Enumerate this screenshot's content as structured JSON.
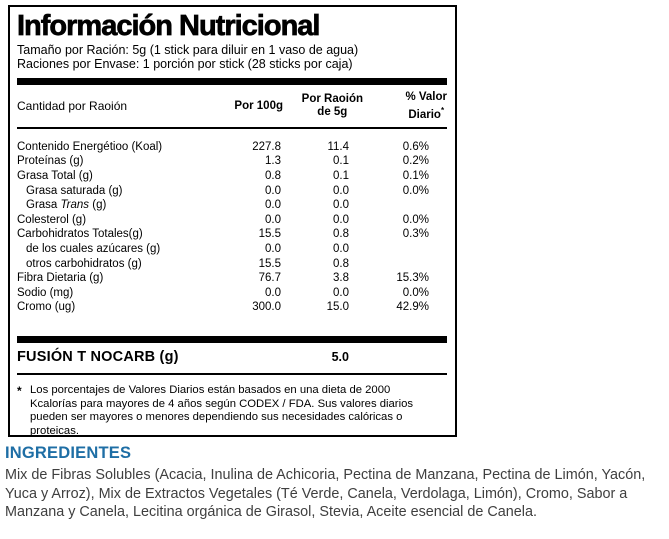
{
  "colors": {
    "accent_blue": "#1e6ea5",
    "ingredients_ink": "#3f3f3f",
    "ink": "#000000"
  },
  "label": {
    "title": "Información Nutricional",
    "serving_size_line": "Tamaño por Ración: 5g (1 stick para diluir en 1 vaso de agua)",
    "servings_per_container_line": "Raciones por Envase: 1 porción por stick (28 sticks por caja)",
    "columns": {
      "amount_header": "Cantidad por Raoión",
      "per_100g": "Por 100g",
      "per_serving_line1": "Por Raoión",
      "per_serving_line2": "de 5g",
      "daily_value_line1": "% Valor",
      "daily_value_line2": "Diario",
      "daily_value_asterisk": "*"
    },
    "rows": [
      {
        "label": "Contenido Energétioo (Koal)",
        "indent": false,
        "per100g": "227.8",
        "per_serving": "11.4",
        "dv": "0.6%"
      },
      {
        "label": "Proteínas (g)",
        "indent": false,
        "per100g": "1.3",
        "per_serving": "0.1",
        "dv": "0.2%"
      },
      {
        "label": "Grasa Total (g)",
        "indent": false,
        "per100g": "0.8",
        "per_serving": "0.1",
        "dv": "0.1%"
      },
      {
        "label": "Grasa saturada (g)",
        "indent": true,
        "per100g": "0.0",
        "per_serving": "0.0",
        "dv": "0.0%"
      },
      {
        "label_pre": "Grasa ",
        "label_italic": "Trans",
        "label_post": " (g)",
        "indent": true,
        "per100g": "0.0",
        "per_serving": "0.0",
        "dv": ""
      },
      {
        "label": "Colesterol (g)",
        "indent": false,
        "per100g": "0.0",
        "per_serving": "0.0",
        "dv": "0.0%"
      },
      {
        "label": "Carbohidratos Totales(g)",
        "indent": false,
        "per100g": "15.5",
        "per_serving": "0.8",
        "dv": "0.3%"
      },
      {
        "label": "de los cuales azúcares (g)",
        "indent": true,
        "per100g": "0.0",
        "per_serving": "0.0",
        "dv": ""
      },
      {
        "label": "otros carbohidratos (g)",
        "indent": true,
        "per100g": "15.5",
        "per_serving": "0.8",
        "dv": ""
      },
      {
        "label": "Fibra Dietaria (g)",
        "indent": false,
        "per100g": "76.7",
        "per_serving": "3.8",
        "dv": "15.3%"
      },
      {
        "label": "Sodio (mg)",
        "indent": false,
        "per100g": "0.0",
        "per_serving": "0.0",
        "dv": "0.0%"
      },
      {
        "label": "Cromo (ug)",
        "indent": false,
        "per100g": "300.0",
        "per_serving": "15.0",
        "dv": "42.9%"
      }
    ],
    "highlight_row": {
      "label": "FUSIÓN T NOCARB (g)",
      "per_serving": "5.0"
    },
    "footnote": {
      "marker": "*",
      "text": "Los porcentajes de Valores Diarios están basados en una dieta de 2000 Kcalorías para mayores de 4 años según CODEX / FDA. Sus valores diarios pueden ser mayores o menores dependiendo sus necesidades calóricas o proteicas."
    }
  },
  "ingredients": {
    "heading": "INGREDIENTES",
    "text": "Mix de Fibras Solubles (Acacia, Inulina de Achicoria, Pectina de Manzana, Pectina de Limón, Yacón, Yuca y Arroz), Mix de Extractos Vegetales (Té Verde, Canela, Verdolaga, Limón), Cromo, Sabor a Manzana y Canela, Lecitina orgánica de Girasol, Stevia, Aceite esencial de Canela."
  }
}
